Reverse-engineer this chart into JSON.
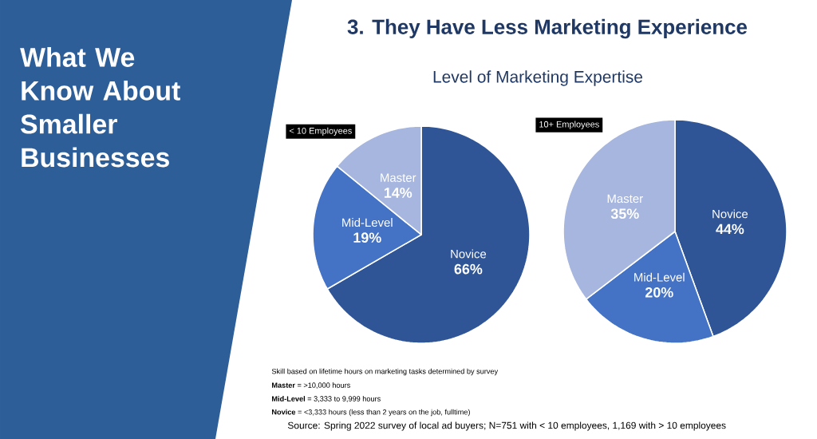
{
  "chart_data": [
    {
      "type": "other",
      "title": "3. They Have Less Marketing Experience",
      "subtitle": "Level of Marketing Expertise",
      "annotations": [
        "What We Know About Smaller Businesses",
        "Skill based on lifetime hours on marketing tasks determined by survey",
        "**Master** = >10,000 hours",
        "**Mid-Level** = 3,333 to 9,999 hours",
        "**Novice** = <3,333 hours (less than 2 years on the job, fulltime)",
        "Source: Spring 2022 survey of local ad buyers; N=751 with < 10 employees, 1,169 with > 10 employees"
      ]
    },
    {
      "type": "pie",
      "title": "< 10 Employees",
      "categories": [
        "Novice",
        "Mid-Level",
        "Master"
      ],
      "values": [
        66,
        19,
        14
      ],
      "value_labels": [
        "66%",
        "19%",
        "14%"
      ],
      "colors": [
        "#2f5597",
        "#4472c4",
        "#a6b6de"
      ]
    },
    {
      "type": "pie",
      "title": "10+ Employees",
      "categories": [
        "Novice",
        "Mid-Level",
        "Master"
      ],
      "values": [
        44,
        20,
        35
      ],
      "value_labels": [
        "44%",
        "20%",
        "35%"
      ],
      "colors": [
        "#2f5597",
        "#4472c4",
        "#a6b6de"
      ]
    }
  ]
}
